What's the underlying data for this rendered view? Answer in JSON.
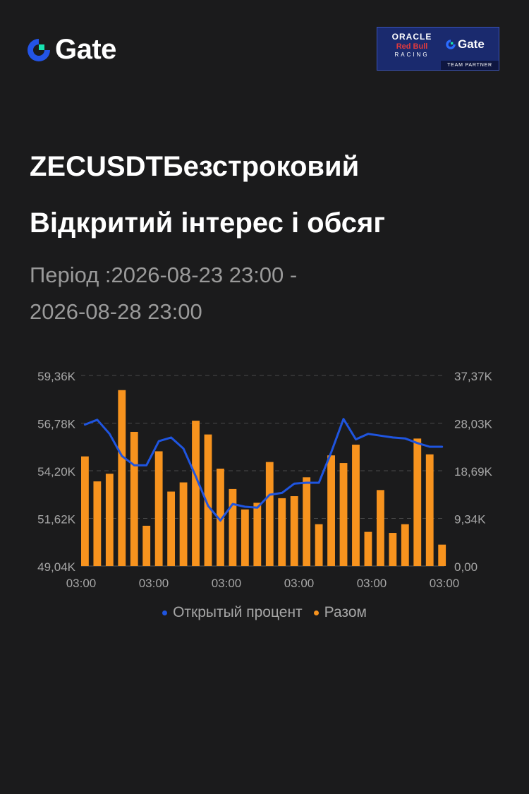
{
  "brand": {
    "name": "Gate",
    "logo_icon": "gate-logo-icon"
  },
  "partner": {
    "line1": "ORACLE",
    "line2": "Red Bull",
    "line3": "RACING",
    "gate": "Gate",
    "badge": "TEAM PARTNER"
  },
  "title": {
    "line1": "ZECUSDTБезстроковий",
    "line2": "Відкритий інтерес і обсяг"
  },
  "period": {
    "line1": "Період :2026-08-23 23:00 -",
    "line2": "2026-08-28 23:00"
  },
  "colors": {
    "background": "#1b1b1c",
    "line": "#1f55e0",
    "bars": "#f7931e",
    "text_muted": "#a6a6a6"
  },
  "chart_data": {
    "type": "bar+line",
    "categories_count": 30,
    "x_tick_labels": [
      "03:00",
      "03:00",
      "03:00",
      "03:00",
      "03:00",
      "03:00"
    ],
    "y_left": {
      "ticks": [
        "49,04K",
        "51,62K",
        "54,20K",
        "56,78K",
        "59,36K"
      ],
      "range": [
        49.04,
        59.36
      ]
    },
    "y_right": {
      "ticks": [
        "0,00",
        "9,34K",
        "18,69K",
        "28,03K",
        "37,37K"
      ],
      "range": [
        0,
        37.37
      ]
    },
    "grid": "dashed horizontal",
    "legend_position": "bottom",
    "series": [
      {
        "name": "Открытый процент",
        "type": "line",
        "axis": "left",
        "values": [
          56.7,
          56.96,
          56.2,
          55.0,
          54.5,
          54.5,
          55.8,
          56.0,
          55.4,
          53.9,
          52.3,
          51.5,
          52.4,
          52.25,
          52.2,
          52.9,
          53.0,
          53.5,
          53.55,
          53.55,
          55.2,
          57.0,
          55.9,
          56.2,
          56.1,
          56.0,
          55.95,
          55.7,
          55.5,
          55.5
        ]
      },
      {
        "name": "Разом",
        "type": "bar",
        "axis": "right",
        "values": [
          21.5,
          16.6,
          18.1,
          34.5,
          26.3,
          7.9,
          22.5,
          14.6,
          16.4,
          28.5,
          25.8,
          19.1,
          15.1,
          11.1,
          12.4,
          20.4,
          13.3,
          13.7,
          17.4,
          8.2,
          21.7,
          20.2,
          23.8,
          6.7,
          14.9,
          6.5,
          8.2,
          25.0,
          21.9,
          4.2
        ]
      }
    ]
  }
}
